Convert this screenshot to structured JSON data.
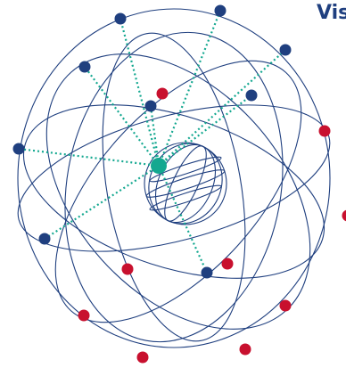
{
  "header": {
    "title_fragment": "Vis"
  },
  "colors": {
    "orbit": "#1f3f7f",
    "earth": "#1f3f7f",
    "visible_satellite": "#1f3f7f",
    "hidden_satellite": "#c8102e",
    "receiver": "#14a890",
    "sightline": "#14a890"
  },
  "diagram": {
    "visible_satellite_count": 10,
    "hidden_satellite_count": 11,
    "receiver_count": 1
  }
}
